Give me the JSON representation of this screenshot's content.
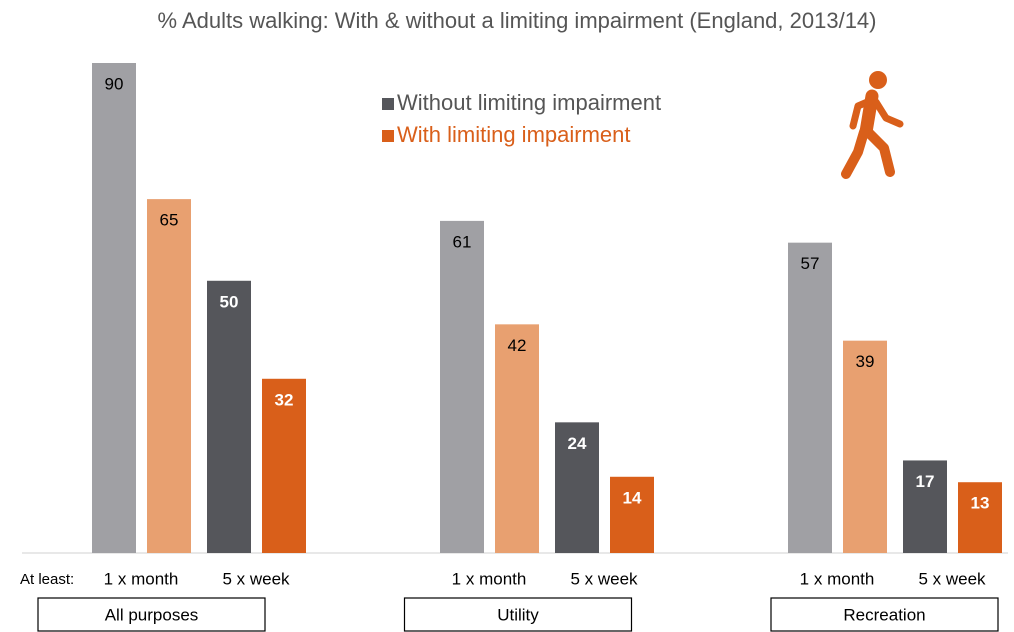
{
  "chart_data": {
    "type": "grouped_bar",
    "title": "% Adults walking: With & without a limiting impairment (England, 2013/14)",
    "x_prefix": "At least:",
    "categories": [
      "1 x month",
      "5 x week",
      "1 x month",
      "5 x week",
      "1 x month",
      "5 x week"
    ],
    "group_labels": [
      "All purposes",
      "Utility",
      "Recreation"
    ],
    "series": [
      {
        "name": "Without limiting impairment",
        "color": "#55565b",
        "light_color": "#a0a0a4",
        "values": [
          90,
          50,
          61,
          24,
          57,
          17
        ]
      },
      {
        "name": "With limiting impairment",
        "color": "#d95f1a",
        "light_color": "#e8a070",
        "values": [
          65,
          32,
          42,
          14,
          39,
          13
        ]
      }
    ],
    "ylim": [
      0,
      90
    ]
  }
}
